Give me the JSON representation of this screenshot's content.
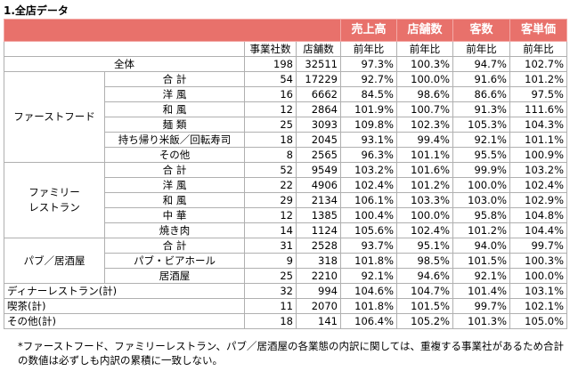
{
  "title": "1.全店データ",
  "headers": {
    "group": [
      "売上高",
      "店舗数",
      "客数",
      "客単価"
    ],
    "sub": [
      "事業社数",
      "店舗数",
      "前年比",
      "前年比",
      "前年比",
      "前年比"
    ]
  },
  "rows": {
    "zentai": {
      "label": "全体",
      "values": [
        "198",
        "32511",
        "97.3%",
        "100.3%",
        "94.7%",
        "102.7%"
      ]
    },
    "fast": {
      "group": "ファーストフード",
      "items": [
        {
          "label": "合 計",
          "values": [
            "54",
            "17229",
            "92.7%",
            "100.0%",
            "91.6%",
            "101.2%"
          ]
        },
        {
          "label": "洋 風",
          "values": [
            "16",
            "6662",
            "84.5%",
            "98.6%",
            "86.6%",
            "97.5%"
          ]
        },
        {
          "label": "和 風",
          "values": [
            "12",
            "2864",
            "101.9%",
            "100.7%",
            "91.3%",
            "111.6%"
          ]
        },
        {
          "label": "麺 類",
          "values": [
            "25",
            "3093",
            "109.8%",
            "102.3%",
            "105.3%",
            "104.3%"
          ]
        },
        {
          "label": "持ち帰り米飯／回転寿司",
          "values": [
            "18",
            "2045",
            "93.1%",
            "99.4%",
            "92.1%",
            "101.1%"
          ]
        },
        {
          "label": "その他",
          "values": [
            "8",
            "2565",
            "96.3%",
            "101.1%",
            "95.5%",
            "100.9%"
          ]
        }
      ]
    },
    "family": {
      "group_line1": "ファミリー",
      "group_line2": "レストラン",
      "items": [
        {
          "label": "合 計",
          "values": [
            "52",
            "9549",
            "103.2%",
            "101.6%",
            "99.9%",
            "103.2%"
          ]
        },
        {
          "label": "洋 風",
          "values": [
            "22",
            "4906",
            "102.4%",
            "101.2%",
            "100.0%",
            "102.4%"
          ]
        },
        {
          "label": "和 風",
          "values": [
            "29",
            "2134",
            "106.1%",
            "103.3%",
            "103.0%",
            "102.9%"
          ]
        },
        {
          "label": "中 華",
          "values": [
            "12",
            "1385",
            "100.4%",
            "100.0%",
            "95.8%",
            "104.8%"
          ]
        },
        {
          "label": "焼き肉",
          "values": [
            "14",
            "1124",
            "105.6%",
            "102.4%",
            "101.2%",
            "104.4%"
          ]
        }
      ]
    },
    "pub": {
      "group": "パブ／居酒屋",
      "items": [
        {
          "label": "合 計",
          "values": [
            "31",
            "2528",
            "93.7%",
            "95.1%",
            "94.0%",
            "99.7%"
          ]
        },
        {
          "label": "パブ・ビアホール",
          "values": [
            "9",
            "318",
            "101.8%",
            "98.5%",
            "101.5%",
            "100.3%"
          ]
        },
        {
          "label": "居酒屋",
          "values": [
            "25",
            "2210",
            "92.1%",
            "94.6%",
            "92.1%",
            "100.0%"
          ]
        }
      ]
    },
    "dinner": {
      "label": "ディナーレストラン(計)",
      "values": [
        "32",
        "994",
        "104.6%",
        "104.7%",
        "101.4%",
        "103.1%"
      ]
    },
    "kissa": {
      "label": "喫茶(計)",
      "values": [
        "11",
        "2070",
        "101.8%",
        "101.5%",
        "99.7%",
        "102.1%"
      ]
    },
    "other": {
      "label": "その他(計)",
      "values": [
        "18",
        "141",
        "106.4%",
        "105.2%",
        "101.3%",
        "105.0%"
      ]
    }
  },
  "footnote": "*ファーストフード、ファミリーレストラン、パブ／居酒屋の各業態の内訳に関しては、重複する事業社があるため合計の数値は必ずしも内訳の累積に一致しない。"
}
